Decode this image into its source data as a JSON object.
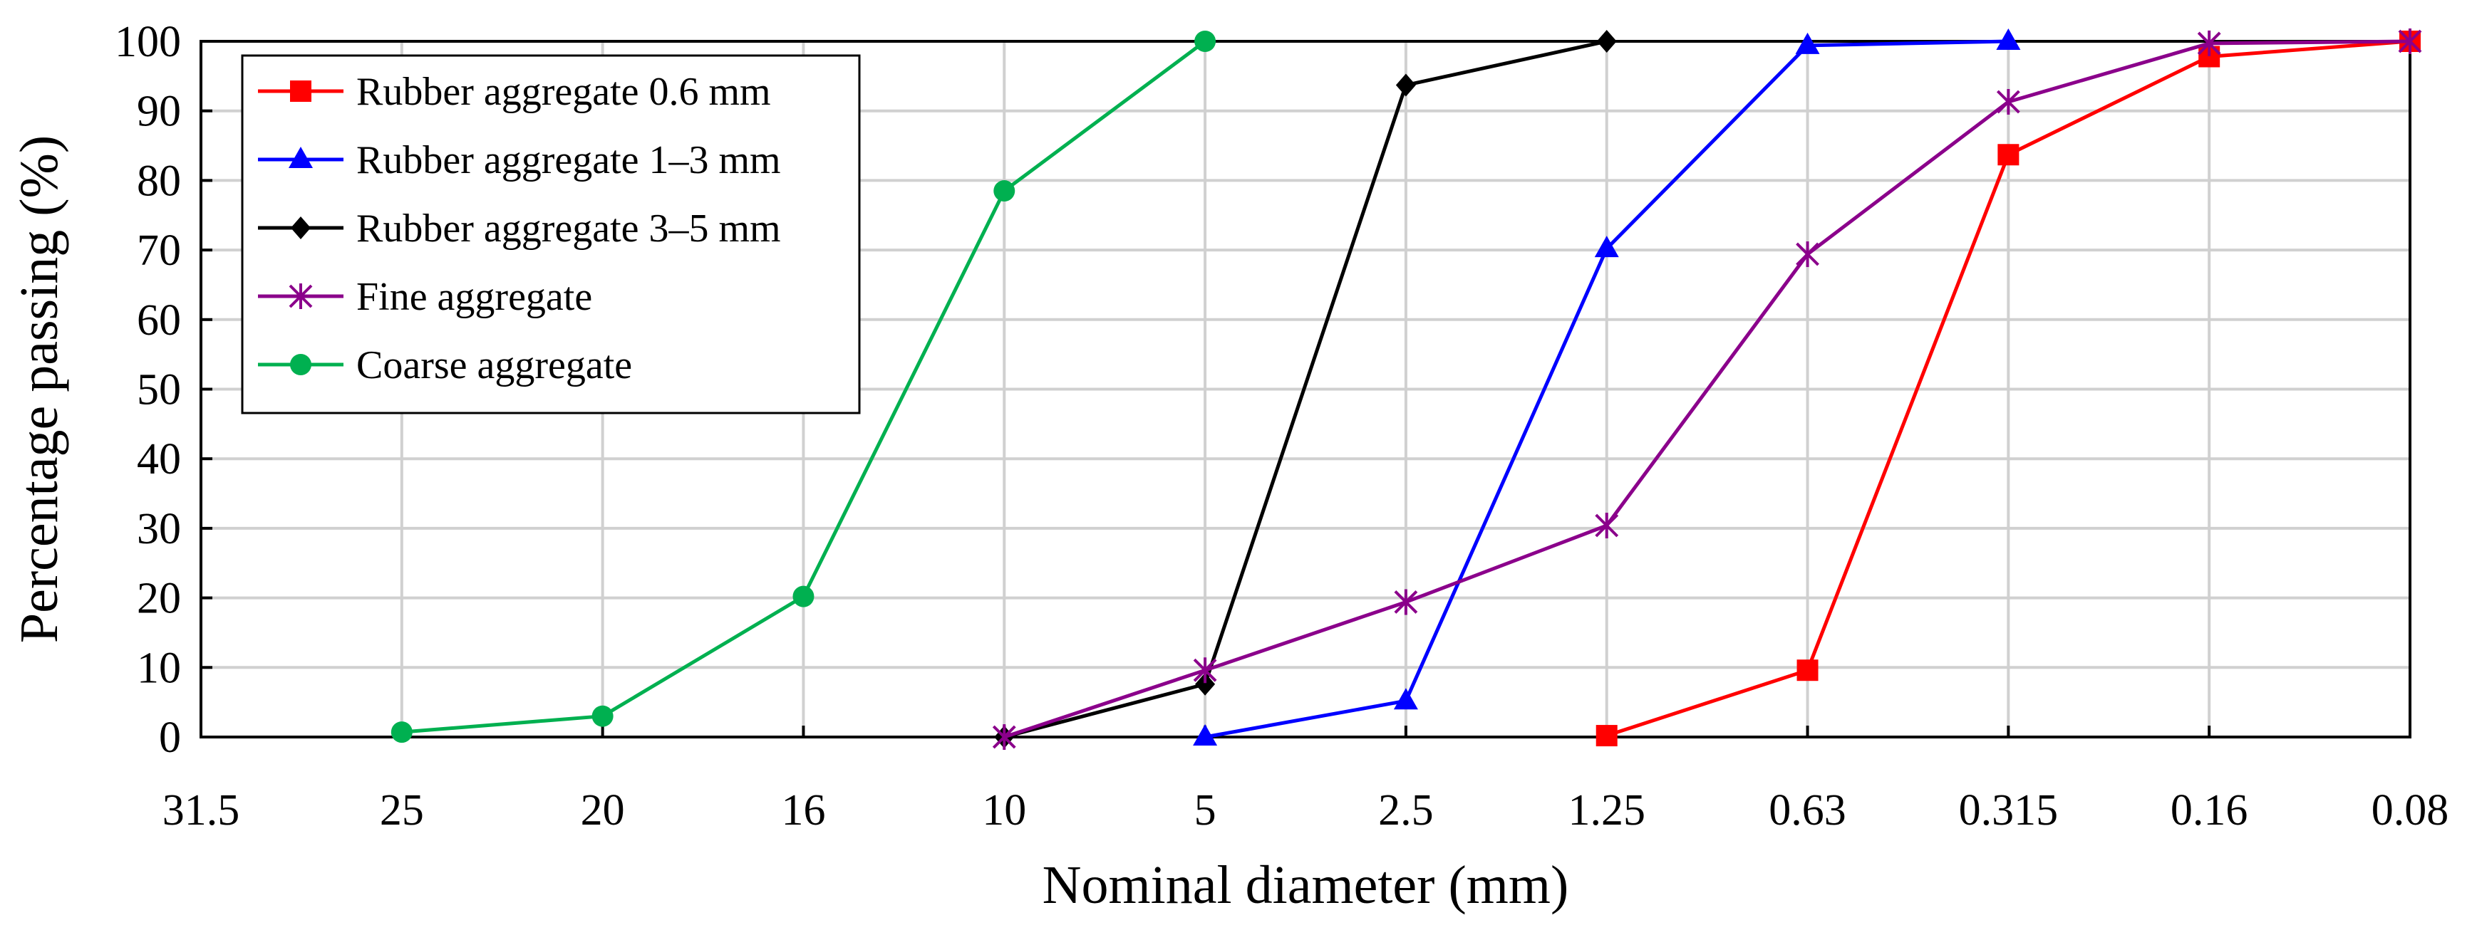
{
  "chart_data": {
    "type": "line",
    "title": "",
    "xlabel": "Nominal diameter (mm)",
    "ylabel": "Percentage passing (%)",
    "categories": [
      "31.5",
      "25",
      "20",
      "16",
      "10",
      "5",
      "2.5",
      "1.25",
      "0.63",
      "0.315",
      "0.16",
      "0.08"
    ],
    "ylim": [
      0,
      100
    ],
    "yticks": [
      0,
      10,
      20,
      30,
      40,
      50,
      60,
      70,
      80,
      90,
      100
    ],
    "grid": true,
    "legend_position": "top-left",
    "series": [
      {
        "name": "Rubber aggregate 0.6 mm",
        "color": "#ff0000",
        "marker": "square",
        "points": [
          {
            "x": "1.25",
            "y": 0.2
          },
          {
            "x": "0.63",
            "y": 9.6
          },
          {
            "x": "0.315",
            "y": 83.7
          },
          {
            "x": "0.16",
            "y": 97.8
          },
          {
            "x": "0.08",
            "y": 100
          }
        ]
      },
      {
        "name": "Rubber aggregate 1–3 mm",
        "color": "#0000ff",
        "marker": "triangle",
        "points": [
          {
            "x": "5",
            "y": 0
          },
          {
            "x": "2.5",
            "y": 5.2
          },
          {
            "x": "1.25",
            "y": 70.2
          },
          {
            "x": "0.63",
            "y": 99.4
          },
          {
            "x": "0.315",
            "y": 100
          }
        ]
      },
      {
        "name": "Rubber aggregate 3–5 mm",
        "color": "#000000",
        "marker": "diamond",
        "points": [
          {
            "x": "10",
            "y": 0
          },
          {
            "x": "5",
            "y": 7.6
          },
          {
            "x": "2.5",
            "y": 93.7
          },
          {
            "x": "1.25",
            "y": 100
          }
        ]
      },
      {
        "name": "Fine aggregate",
        "color": "#8b008b",
        "marker": "star",
        "points": [
          {
            "x": "10",
            "y": 0
          },
          {
            "x": "5",
            "y": 9.6
          },
          {
            "x": "2.5",
            "y": 19.4
          },
          {
            "x": "1.25",
            "y": 30.4
          },
          {
            "x": "0.63",
            "y": 69.4
          },
          {
            "x": "0.315",
            "y": 91.3
          },
          {
            "x": "0.16",
            "y": 99.7
          },
          {
            "x": "0.08",
            "y": 100
          }
        ]
      },
      {
        "name": "Coarse aggregate",
        "color": "#00b050",
        "marker": "circle",
        "points": [
          {
            "x": "25",
            "y": 0.7
          },
          {
            "x": "20",
            "y": 3.0
          },
          {
            "x": "16",
            "y": 20.2
          },
          {
            "x": "10",
            "y": 78.5
          },
          {
            "x": "5",
            "y": 100
          }
        ]
      }
    ]
  }
}
